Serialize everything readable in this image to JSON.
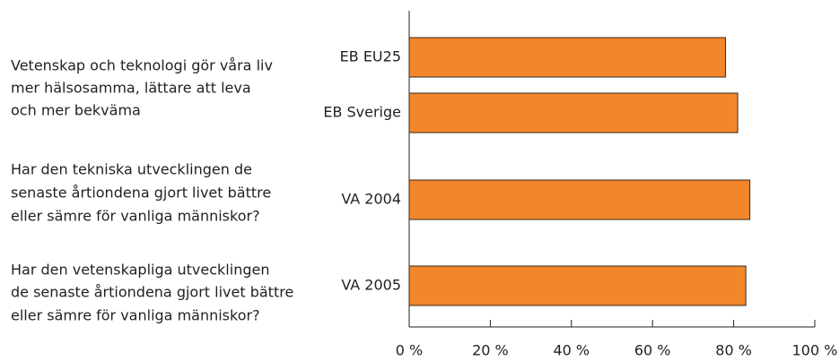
{
  "chart_data": {
    "type": "barh",
    "annotations": [
      [
        "Vetenskap och teknologi gör våra liv",
        "mer hälsosamma, lättare att leva",
        "och mer bekväma"
      ],
      [
        "Har den tekniska utvecklingen de",
        "senaste årtiondena gjort livet bättre",
        "eller sämre för vanliga människor?"
      ],
      [
        "Har den vetenskapliga utvecklingen",
        "de senaste årtiondena gjort livet bättre",
        "eller sämre för vanliga människor?"
      ]
    ],
    "categories": [
      "EB EU25",
      "EB Sverige",
      "VA 2004",
      "VA 2005"
    ],
    "values": [
      78,
      81,
      84,
      83
    ],
    "color": "#f3862b",
    "xlim": [
      0,
      100
    ],
    "xticks": [
      {
        "value": 0,
        "label": "0 %"
      },
      {
        "value": 20,
        "label": "20 %"
      },
      {
        "value": 40,
        "label": "40 %"
      },
      {
        "value": 60,
        "label": "60 %"
      },
      {
        "value": 80,
        "label": "80 %"
      },
      {
        "value": 100,
        "label": "100 %"
      }
    ]
  }
}
